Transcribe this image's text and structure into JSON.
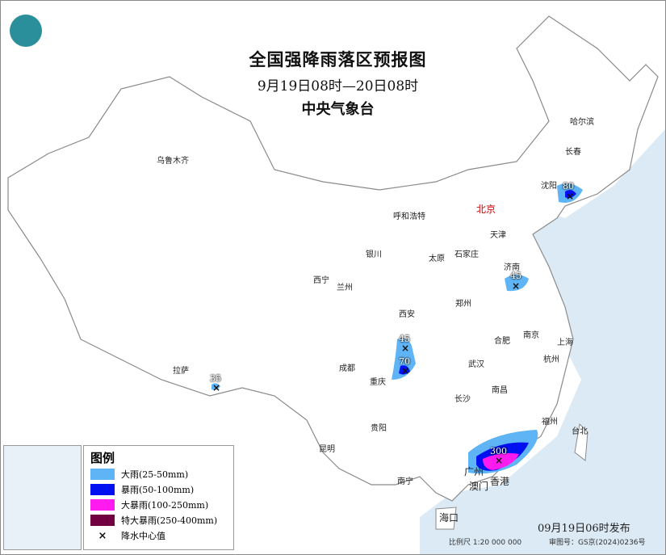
{
  "title": "全国强降雨落区预报图",
  "period": "9月19日08时—20日08时",
  "agency": "中央气象台",
  "legend": {
    "title": "图例",
    "items": [
      {
        "label": "大雨(25-50mm)",
        "color": "#5fb4f5"
      },
      {
        "label": "暴雨(50-100mm)",
        "color": "#0010f0"
      },
      {
        "label": "大暴雨(100-250mm)",
        "color": "#ff1af0"
      },
      {
        "label": "特大暴雨(250-400mm)",
        "color": "#720040"
      },
      {
        "label": "降水中心值",
        "icon": "cross-icon"
      }
    ]
  },
  "cities": {
    "beijing": "北京",
    "tianjin": "天津",
    "harbin": "哈尔滨",
    "changchun": "长春",
    "shenyang": "沈阳",
    "hohhot": "呼和浩特",
    "shijiazhuang": "石家庄",
    "taiyuan": "太原",
    "jinan": "济南",
    "yinchuan": "银川",
    "xining": "西宁",
    "lanzhou": "兰州",
    "zhengzhou": "郑州",
    "xian": "西安",
    "hefei": "合肥",
    "nanjing": "南京",
    "shanghai": "上海",
    "hangzhou": "杭州",
    "wuhan": "武汉",
    "chengdu": "成都",
    "chongqing": "重庆",
    "changsha": "长沙",
    "nanchang": "南昌",
    "lhasa": "拉萨",
    "fuzhou": "福州",
    "taipei": "台北",
    "guiyang": "贵阳",
    "kunming": "昆明",
    "nanning": "南宁",
    "guangzhou": "广州",
    "hongkong": "香港",
    "macau": "澳门",
    "haikou": "海口",
    "urumqi": "乌鲁木齐"
  },
  "rain_centers": [
    "80",
    "45",
    "45",
    "70",
    "35",
    "300"
  ],
  "issued": "09月19日06时发布",
  "scale": "比例尺 1:20 000 000",
  "review_no": "审图号：GS京(2024)0236号"
}
